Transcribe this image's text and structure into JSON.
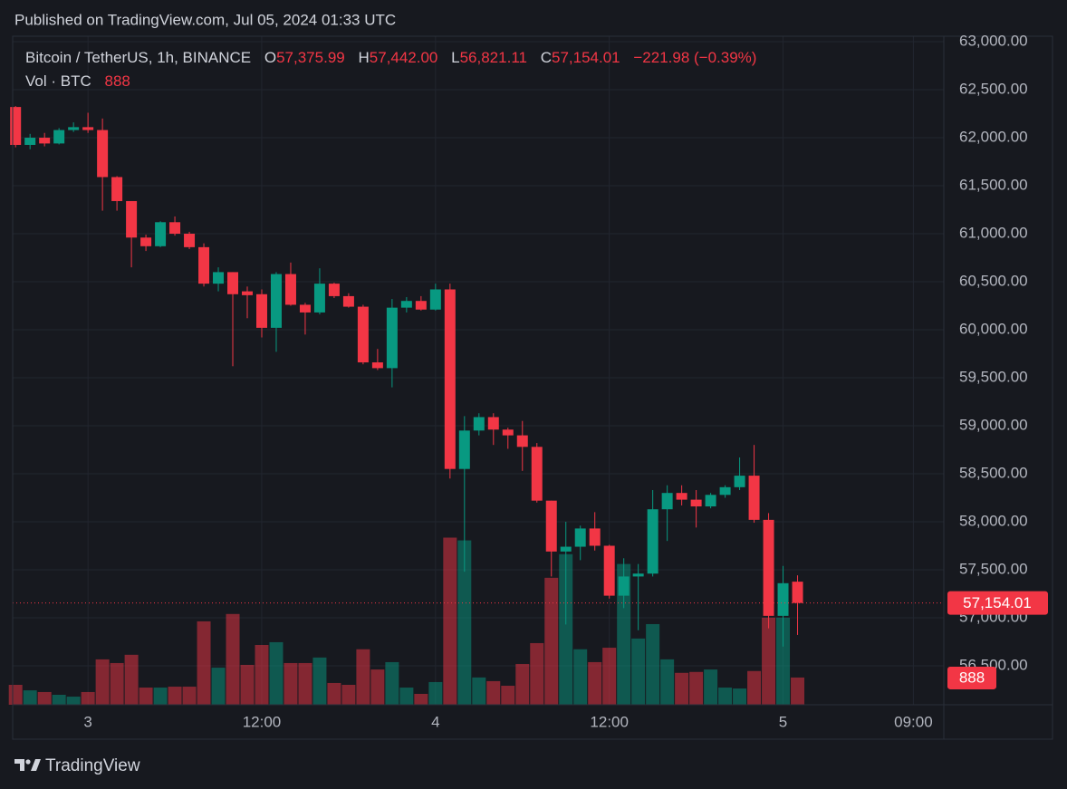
{
  "header": {
    "published": "Published on TradingView.com, Jul 05, 2024 01:33 UTC",
    "symbol": "Bitcoin / TetherUS, 1h, BINANCE",
    "ohlc": [
      {
        "key": "O",
        "value": "57,375.99"
      },
      {
        "key": "H",
        "value": "57,442.00"
      },
      {
        "key": "L",
        "value": "56,821.11"
      },
      {
        "key": "C",
        "value": "57,154.01"
      }
    ],
    "change": "−221.98 (−0.39%)",
    "volume_title": "Vol · BTC"
  },
  "footer": {
    "brand": "TradingView"
  },
  "chart_data": {
    "type": "candlestick",
    "x": [
      -5,
      -4,
      -3,
      -2,
      -1,
      0,
      1,
      2,
      3,
      4,
      5,
      6,
      7,
      8,
      9,
      10,
      11,
      12,
      13,
      14,
      15,
      16,
      17,
      18,
      19,
      20,
      21,
      22,
      23,
      24,
      25,
      26,
      27,
      28,
      29,
      30,
      31,
      32,
      33,
      34,
      35,
      36,
      37,
      38,
      39,
      40,
      41,
      42,
      43,
      44,
      45,
      46,
      47,
      48,
      49
    ],
    "open": [
      62320,
      61925,
      62000,
      61940,
      62080,
      62110,
      62080,
      61590,
      61340,
      60960,
      60870,
      61120,
      61000,
      60860,
      60480,
      60600,
      60400,
      60370,
      60020,
      60580,
      60260,
      60180,
      60480,
      60350,
      60240,
      59660,
      59600,
      60230,
      60300,
      60210,
      60420,
      58550,
      58950,
      59090,
      58960,
      58900,
      58780,
      58220,
      57690,
      57740,
      57930,
      57750,
      57230,
      57430,
      57460,
      58130,
      58300,
      58230,
      58160,
      58280,
      58360,
      58480,
      58020,
      57020,
      57375.99
    ],
    "high": [
      62330,
      62040,
      62050,
      62100,
      62160,
      62260,
      62200,
      61600,
      61340,
      60990,
      61130,
      61180,
      61020,
      60900,
      60650,
      60600,
      60450,
      60420,
      60600,
      60700,
      60280,
      60640,
      60490,
      60380,
      60260,
      59800,
      60320,
      60340,
      60350,
      60480,
      60480,
      59100,
      59130,
      59130,
      58980,
      59050,
      58820,
      58220,
      58000,
      57960,
      58100,
      57760,
      57620,
      57560,
      58330,
      58380,
      58380,
      58330,
      58300,
      58380,
      58670,
      58800,
      58090,
      57540,
      57442
    ],
    "low": [
      61900,
      61880,
      61910,
      61930,
      62060,
      62050,
      61240,
      61240,
      60650,
      60820,
      60860,
      60980,
      60840,
      60450,
      60400,
      59620,
      60120,
      59920,
      59770,
      60250,
      59950,
      60160,
      60330,
      60230,
      59640,
      59580,
      59400,
      60180,
      60200,
      60200,
      58450,
      57480,
      58900,
      58800,
      58760,
      58530,
      58200,
      57430,
      56930,
      57600,
      57700,
      57200,
      57100,
      56870,
      57430,
      57800,
      58170,
      57940,
      58140,
      58250,
      58330,
      57990,
      56890,
      56700,
      56821.11
    ],
    "close": [
      61925,
      62000,
      61940,
      62080,
      62110,
      62080,
      61590,
      61340,
      60960,
      60870,
      61120,
      61000,
      60860,
      60480,
      60600,
      60370,
      60360,
      60020,
      60580,
      60260,
      60180,
      60480,
      60350,
      60240,
      59660,
      59600,
      60230,
      60300,
      60210,
      60420,
      58550,
      58950,
      59090,
      58960,
      58900,
      58780,
      58220,
      57690,
      57740,
      57930,
      57750,
      57230,
      57430,
      57460,
      58130,
      58300,
      58230,
      58160,
      58280,
      58360,
      58480,
      58020,
      57020,
      57360,
      57154.01
    ],
    "volume": [
      650,
      470,
      415,
      325,
      265,
      415,
      1480,
      1360,
      1630,
      560,
      560,
      590,
      590,
      2720,
      1210,
      2960,
      1300,
      1950,
      2040,
      1360,
      1360,
      1540,
      710,
      650,
      1810,
      1150,
      1390,
      560,
      355,
      740,
      5450,
      5360,
      890,
      770,
      620,
      1330,
      2010,
      4140,
      4910,
      1810,
      1390,
      1860,
      4590,
      2160,
      2630,
      1480,
      1040,
      1070,
      1150,
      560,
      530,
      1100,
      2840,
      2840,
      888
    ],
    "up_color": "#089981",
    "down_color": "#f23645",
    "xlim": [
      -5.2,
      59.1
    ],
    "xticks": [
      {
        "value": 0,
        "label": "3"
      },
      {
        "value": 12,
        "label": "12:00"
      },
      {
        "value": 24,
        "label": "4"
      },
      {
        "value": 36,
        "label": "12:00"
      },
      {
        "value": 48,
        "label": "5"
      },
      {
        "value": 57,
        "label": "09:00"
      }
    ],
    "ylim": [
      56094,
      63057
    ],
    "yticks": [
      {
        "value": 56500,
        "label": "56,500.00"
      },
      {
        "value": 57000,
        "label": "57,000.00"
      },
      {
        "value": 57500,
        "label": "57,500.00"
      },
      {
        "value": 58000,
        "label": "58,000.00"
      },
      {
        "value": 58500,
        "label": "58,500.00"
      },
      {
        "value": 59000,
        "label": "59,000.00"
      },
      {
        "value": 59500,
        "label": "59,500.00"
      },
      {
        "value": 60000,
        "label": "60,000.00"
      },
      {
        "value": 60500,
        "label": "60,500.00"
      },
      {
        "value": 61000,
        "label": "61,000.00"
      },
      {
        "value": 61500,
        "label": "61,500.00"
      },
      {
        "value": 62000,
        "label": "62,000.00"
      },
      {
        "value": 62500,
        "label": "62,500.00"
      },
      {
        "value": 63000,
        "label": "63,000.00"
      }
    ],
    "y2lim": [
      0,
      21800
    ],
    "last_close_label": "57,154.01",
    "grid": true
  }
}
